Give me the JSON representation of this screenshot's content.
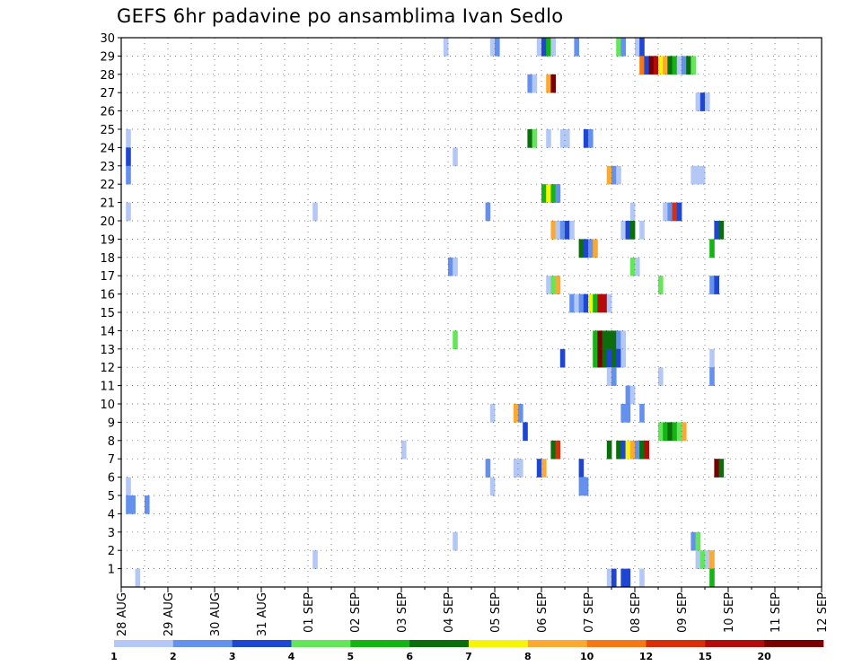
{
  "chart_data": {
    "type": "heatmap",
    "title": "GEFS 6hr padavine po ansamblima Ivan Sedlo",
    "x_tick_labels": [
      "28 AUG",
      "29 AUG",
      "30 AUG",
      "31 AUG",
      "01 SEP",
      "02 SEP",
      "03 SEP",
      "04 SEP",
      "05 SEP",
      "06 SEP",
      "07 SEP",
      "08 SEP",
      "09 SEP",
      "10 SEP",
      "11 SEP",
      "12 SEP"
    ],
    "y_tick_labels": [
      "1",
      "2",
      "3",
      "4",
      "5",
      "6",
      "7",
      "8",
      "9",
      "10",
      "11",
      "12",
      "13",
      "14",
      "15",
      "16",
      "17",
      "18",
      "19",
      "20",
      "21",
      "22",
      "23",
      "24",
      "25",
      "26",
      "27",
      "28",
      "29",
      "30"
    ],
    "x_range_days": [
      0,
      15
    ],
    "y_range": [
      0,
      30
    ],
    "grid": true,
    "step_hours": 6,
    "colorbar": {
      "colors": [
        "#b4c8f5",
        "#6491ee",
        "#1e46d2",
        "#64e65a",
        "#14b414",
        "#0a6e0a",
        "#f5f50a",
        "#faaa32",
        "#f57814",
        "#dc2d0a",
        "#b40a0a",
        "#780000"
      ],
      "labels": [
        "1",
        "2",
        "3",
        "4",
        "5",
        "6",
        "7",
        "8",
        "10",
        "12",
        "15",
        "20"
      ]
    },
    "cells": [
      {
        "m": 30,
        "t": [
          [
            69,
            1
          ],
          [
            79,
            1
          ],
          [
            80,
            2
          ],
          [
            89,
            1
          ],
          [
            90,
            3
          ],
          [
            91,
            5
          ],
          [
            92,
            1
          ],
          [
            97,
            2
          ],
          [
            106,
            4
          ],
          [
            107,
            2
          ],
          [
            110,
            1
          ],
          [
            111,
            3
          ]
        ]
      },
      {
        "m": 29,
        "t": [
          [
            111,
            9
          ],
          [
            112,
            3
          ],
          [
            113,
            12
          ],
          [
            114,
            11
          ],
          [
            115,
            7
          ],
          [
            116,
            8
          ],
          [
            117,
            6
          ],
          [
            118,
            5
          ],
          [
            119,
            1
          ],
          [
            120,
            2
          ],
          [
            121,
            6
          ],
          [
            122,
            4
          ]
        ]
      },
      {
        "m": 28,
        "t": [
          [
            87,
            2
          ],
          [
            88,
            1
          ],
          [
            91,
            8
          ],
          [
            92,
            12
          ]
        ]
      },
      {
        "m": 27,
        "t": [
          [
            123,
            1
          ],
          [
            124,
            3
          ],
          [
            125,
            1
          ]
        ]
      },
      {
        "m": 25,
        "t": [
          [
            1,
            1
          ],
          [
            87,
            6
          ],
          [
            88,
            4
          ],
          [
            91,
            1
          ],
          [
            94,
            1
          ],
          [
            95,
            1
          ],
          [
            99,
            3
          ],
          [
            100,
            2
          ]
        ]
      },
      {
        "m": 24,
        "t": [
          [
            1,
            3
          ],
          [
            71,
            1
          ]
        ]
      },
      {
        "m": 23,
        "t": [
          [
            1,
            2
          ],
          [
            104,
            8
          ],
          [
            105,
            2
          ],
          [
            106,
            1
          ],
          [
            122,
            1
          ],
          [
            123,
            1
          ],
          [
            124,
            1
          ]
        ]
      },
      {
        "m": 22,
        "t": [
          [
            90,
            5
          ],
          [
            91,
            7
          ],
          [
            92,
            5
          ],
          [
            93,
            2
          ]
        ]
      },
      {
        "m": 21,
        "t": [
          [
            1,
            1
          ],
          [
            41,
            1
          ],
          [
            78,
            2
          ],
          [
            109,
            1
          ],
          [
            116,
            1
          ],
          [
            117,
            2
          ],
          [
            118,
            10
          ],
          [
            119,
            3
          ]
        ]
      },
      {
        "m": 20,
        "t": [
          [
            92,
            8
          ],
          [
            93,
            1
          ],
          [
            94,
            2
          ],
          [
            95,
            3
          ],
          [
            96,
            1
          ],
          [
            107,
            1
          ],
          [
            108,
            3
          ],
          [
            109,
            6
          ],
          [
            111,
            1
          ],
          [
            127,
            3
          ],
          [
            128,
            6
          ]
        ]
      },
      {
        "m": 19,
        "t": [
          [
            98,
            6
          ],
          [
            99,
            3
          ],
          [
            100,
            2
          ],
          [
            101,
            8
          ],
          [
            126,
            5
          ]
        ]
      },
      {
        "m": 18,
        "t": [
          [
            70,
            2
          ],
          [
            71,
            1
          ],
          [
            109,
            4
          ],
          [
            110,
            1
          ]
        ]
      },
      {
        "m": 17,
        "t": [
          [
            91,
            1
          ],
          [
            92,
            4
          ],
          [
            93,
            8
          ],
          [
            115,
            4
          ],
          [
            126,
            2
          ],
          [
            127,
            3
          ]
        ]
      },
      {
        "m": 16,
        "t": [
          [
            96,
            2
          ],
          [
            97,
            1
          ],
          [
            98,
            2
          ],
          [
            99,
            3
          ],
          [
            100,
            7
          ],
          [
            101,
            5
          ],
          [
            102,
            11
          ],
          [
            103,
            11
          ],
          [
            104,
            1
          ]
        ]
      },
      {
        "m": 14,
        "t": [
          [
            71,
            4
          ],
          [
            101,
            5
          ],
          [
            102,
            12
          ],
          [
            103,
            6
          ],
          [
            104,
            6
          ],
          [
            105,
            6
          ],
          [
            106,
            2
          ],
          [
            107,
            1
          ]
        ]
      },
      {
        "m": 13,
        "t": [
          [
            94,
            3
          ],
          [
            101,
            5
          ],
          [
            102,
            12
          ],
          [
            103,
            6
          ],
          [
            104,
            3
          ],
          [
            105,
            6
          ],
          [
            106,
            3
          ],
          [
            107,
            1
          ],
          [
            126,
            1
          ]
        ]
      },
      {
        "m": 12,
        "t": [
          [
            104,
            1
          ],
          [
            105,
            2
          ],
          [
            115,
            1
          ],
          [
            126,
            2
          ]
        ]
      },
      {
        "m": 11,
        "t": [
          [
            108,
            2
          ],
          [
            109,
            1
          ]
        ]
      },
      {
        "m": 10,
        "t": [
          [
            79,
            1
          ],
          [
            84,
            8
          ],
          [
            85,
            2
          ],
          [
            107,
            2
          ],
          [
            108,
            2
          ],
          [
            111,
            2
          ]
        ]
      },
      {
        "m": 9,
        "t": [
          [
            86,
            3
          ],
          [
            115,
            4
          ],
          [
            116,
            5
          ],
          [
            117,
            6
          ],
          [
            118,
            5
          ],
          [
            119,
            4
          ],
          [
            120,
            8
          ]
        ]
      },
      {
        "m": 8,
        "t": [
          [
            60,
            1
          ],
          [
            92,
            6
          ],
          [
            93,
            10
          ],
          [
            104,
            6
          ],
          [
            106,
            6
          ],
          [
            107,
            3
          ],
          [
            108,
            7
          ],
          [
            109,
            8
          ],
          [
            110,
            2
          ],
          [
            111,
            6
          ],
          [
            112,
            11
          ]
        ]
      },
      {
        "m": 7,
        "t": [
          [
            78,
            2
          ],
          [
            84,
            1
          ],
          [
            85,
            1
          ],
          [
            89,
            3
          ],
          [
            90,
            8
          ],
          [
            98,
            3
          ],
          [
            127,
            12
          ],
          [
            128,
            6
          ]
        ]
      },
      {
        "m": 6,
        "t": [
          [
            1,
            1
          ],
          [
            79,
            1
          ],
          [
            98,
            2
          ],
          [
            99,
            2
          ]
        ]
      },
      {
        "m": 5,
        "t": [
          [
            1,
            2
          ],
          [
            2,
            2
          ],
          [
            5,
            2
          ]
        ]
      },
      {
        "m": 3,
        "t": [
          [
            71,
            1
          ],
          [
            122,
            2
          ],
          [
            123,
            4
          ]
        ]
      },
      {
        "m": 2,
        "t": [
          [
            41,
            1
          ],
          [
            123,
            1
          ],
          [
            124,
            4
          ],
          [
            125,
            1
          ],
          [
            126,
            8
          ]
        ]
      },
      {
        "m": 1,
        "t": [
          [
            3,
            1
          ],
          [
            104,
            1
          ],
          [
            105,
            3
          ],
          [
            107,
            3
          ],
          [
            108,
            3
          ],
          [
            111,
            1
          ],
          [
            126,
            5
          ]
        ]
      }
    ]
  }
}
